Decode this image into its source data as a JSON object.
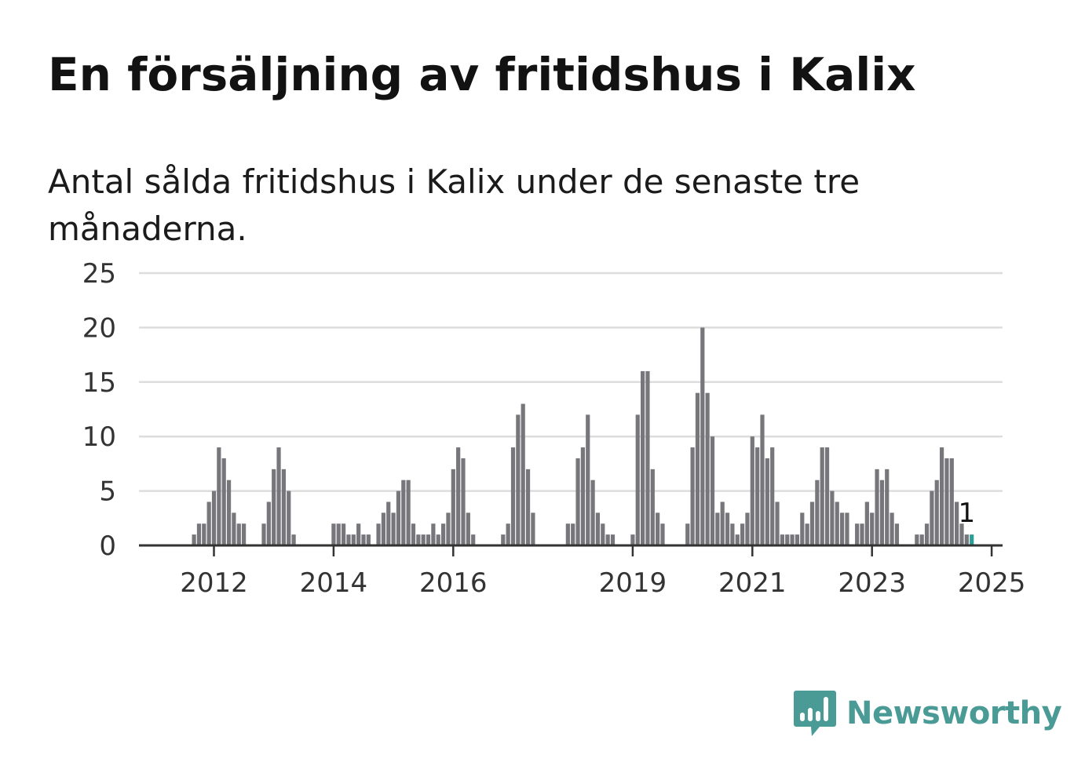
{
  "title": "En försäljning av fritidshus i Kalix",
  "subtitle": "Antal sålda fritidshus i Kalix under de senaste tre månaderna.",
  "brand": {
    "name": "Newsworthy",
    "color": "#4a9a95",
    "icon": "bar-chart-speech-bubble-icon"
  },
  "colors": {
    "bar": "#77767a",
    "highlight": "#2a9d96",
    "grid": "#dddddd",
    "axis": "#333333"
  },
  "chart_data": {
    "type": "bar",
    "title": "En försäljning av fritidshus i Kalix",
    "xlabel": "",
    "ylabel": "",
    "ylim": [
      0,
      25
    ],
    "yticks": [
      0,
      5,
      10,
      15,
      20,
      25
    ],
    "xtick_labels": [
      "2012",
      "2014",
      "2016",
      "2019",
      "2021",
      "2023",
      "2025"
    ],
    "grid": true,
    "annotation": {
      "text": "1",
      "index": 165
    },
    "values": [
      0,
      0,
      0,
      0,
      0,
      0,
      0,
      0,
      0,
      0,
      1,
      2,
      2,
      4,
      5,
      9,
      8,
      6,
      3,
      2,
      2,
      0,
      0,
      0,
      2,
      4,
      7,
      9,
      7,
      5,
      1,
      0,
      0,
      0,
      0,
      0,
      0,
      0,
      2,
      2,
      2,
      1,
      1,
      2,
      1,
      1,
      0,
      2,
      3,
      4,
      3,
      5,
      6,
      6,
      2,
      1,
      1,
      1,
      2,
      1,
      2,
      3,
      7,
      9,
      8,
      3,
      1,
      0,
      0,
      0,
      0,
      0,
      1,
      2,
      9,
      12,
      13,
      7,
      3,
      0,
      0,
      0,
      0,
      0,
      0,
      2,
      2,
      8,
      9,
      12,
      6,
      3,
      2,
      1,
      1,
      0,
      0,
      0,
      1,
      12,
      16,
      16,
      7,
      3,
      2,
      0,
      0,
      0,
      0,
      2,
      9,
      14,
      20,
      14,
      10,
      3,
      4,
      3,
      2,
      1,
      2,
      3,
      10,
      9,
      12,
      8,
      9,
      4,
      1,
      1,
      1,
      1,
      3,
      2,
      4,
      6,
      9,
      9,
      5,
      4,
      3,
      3,
      0,
      2,
      2,
      4,
      3,
      7,
      6,
      7,
      3,
      2,
      0,
      0,
      0,
      1,
      1,
      2,
      5,
      6,
      9,
      8,
      8,
      4,
      2,
      1,
      1
    ]
  }
}
